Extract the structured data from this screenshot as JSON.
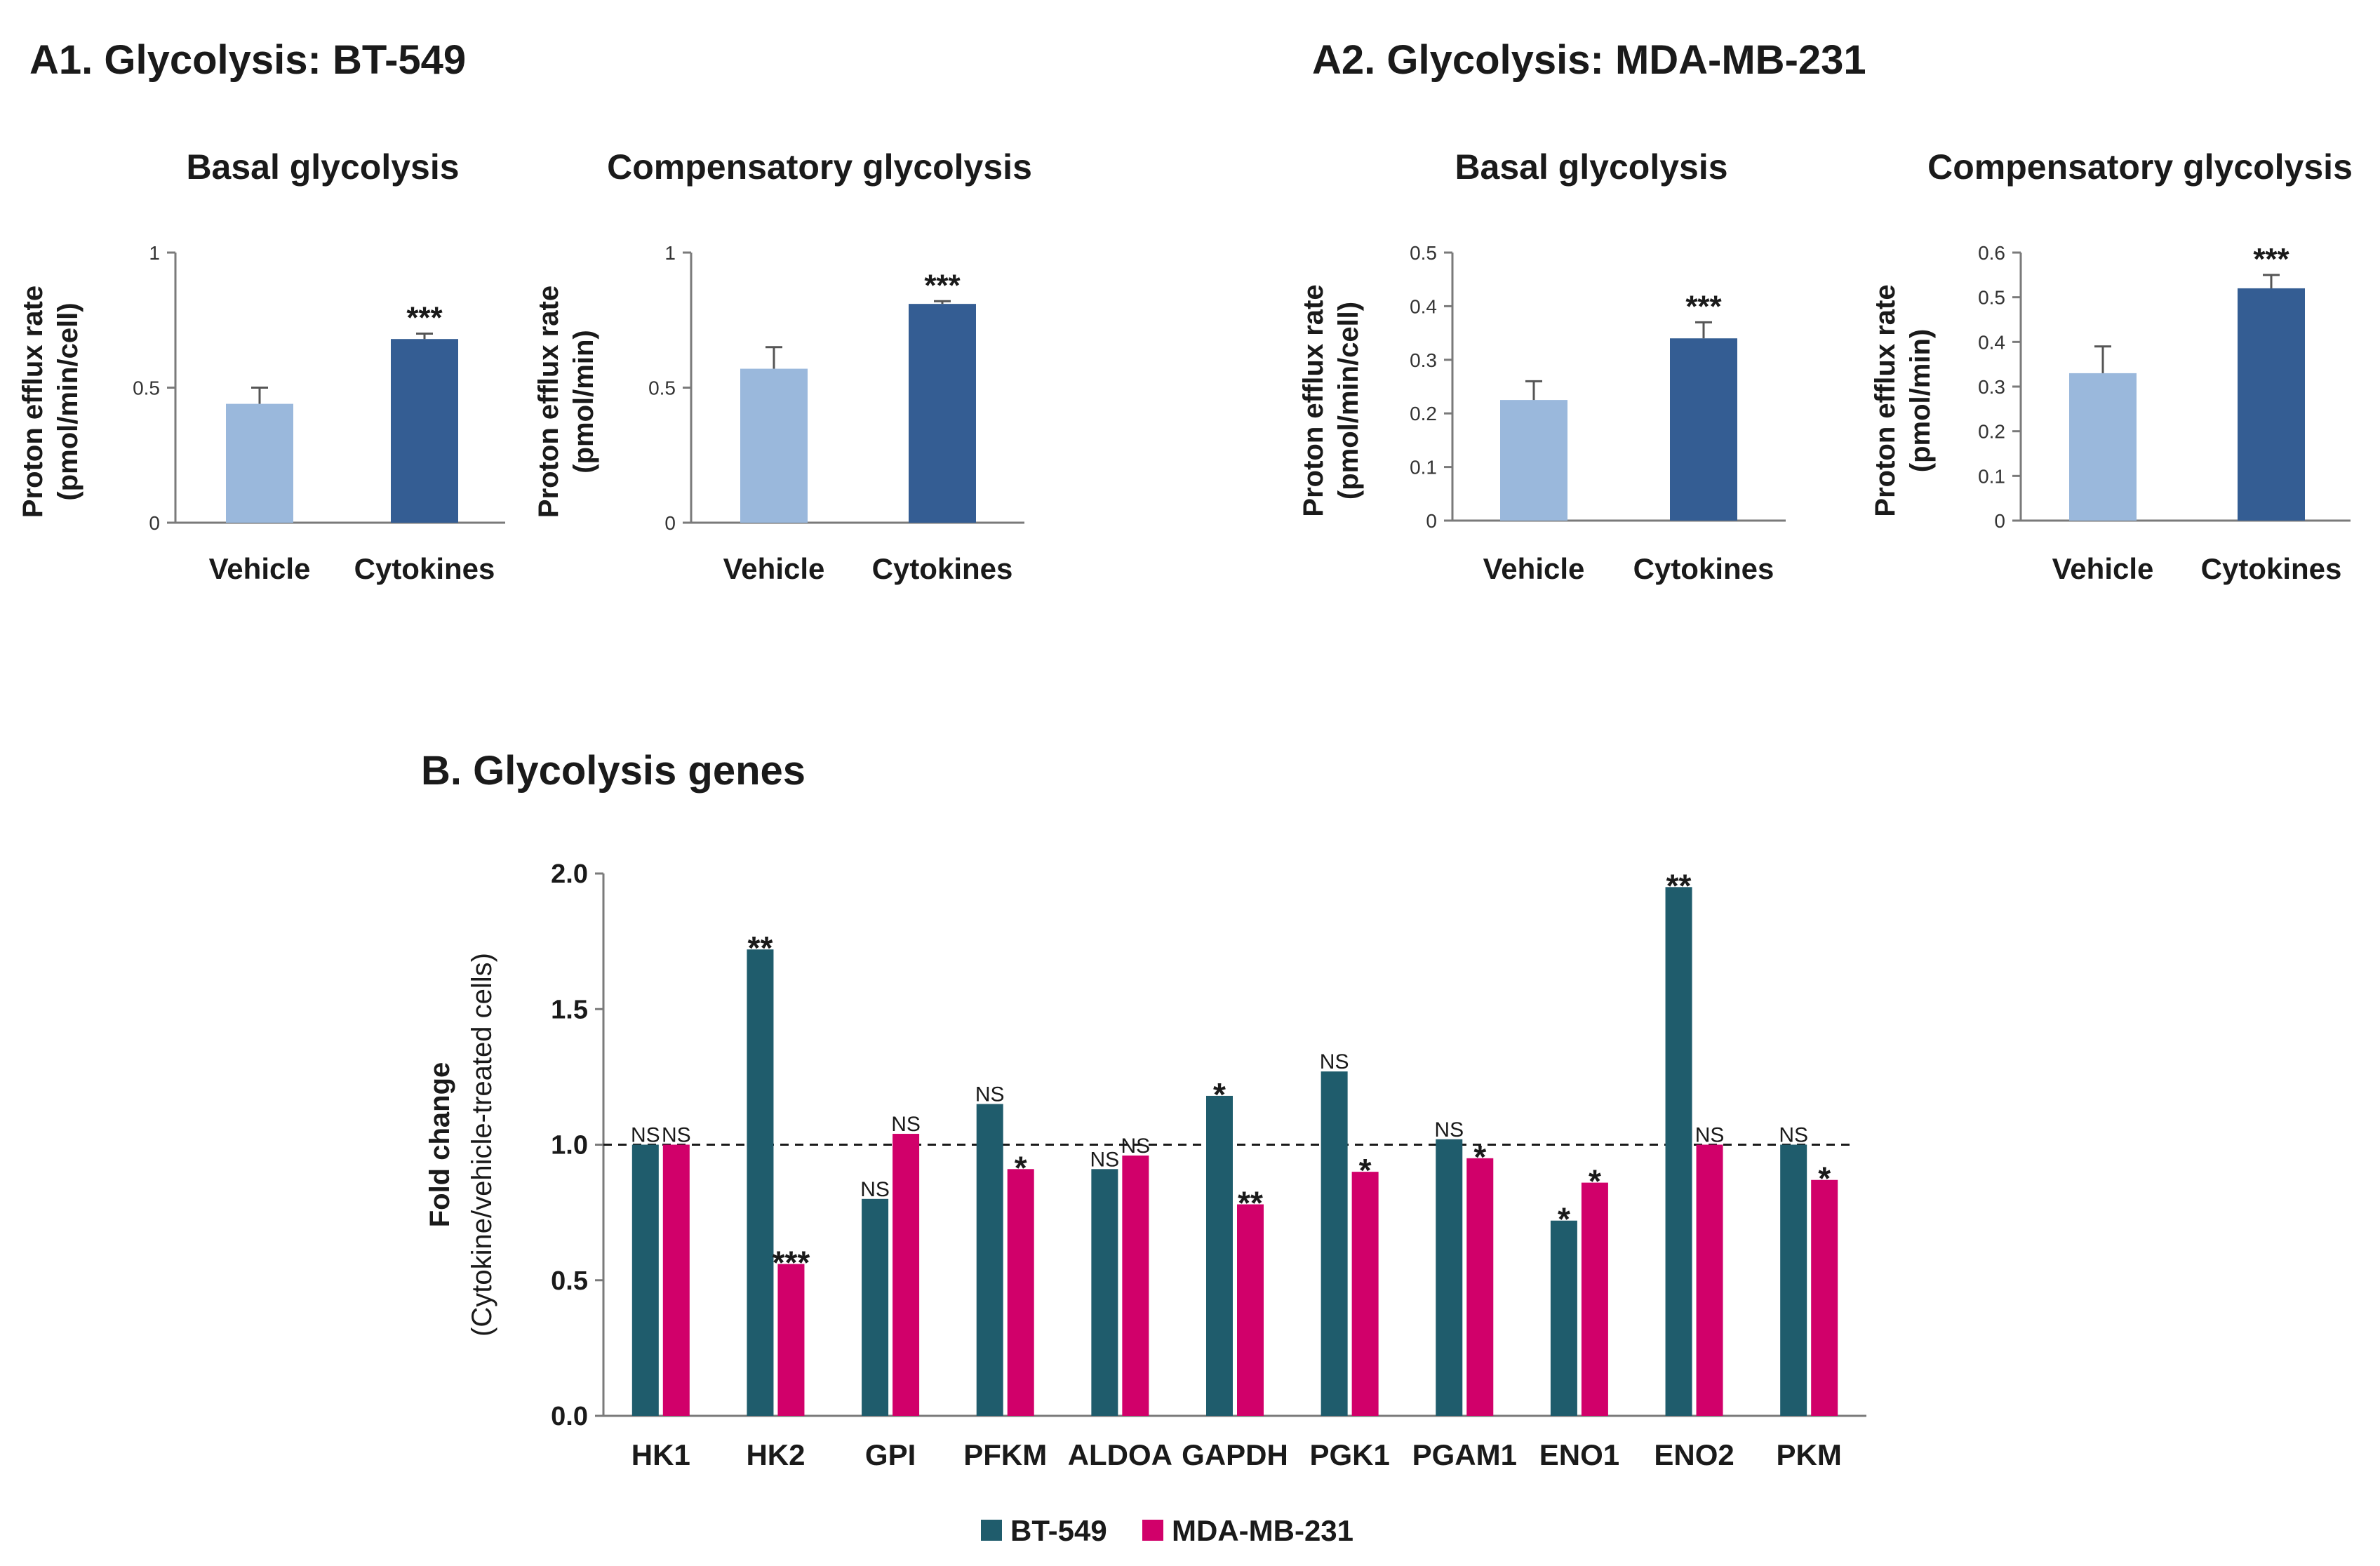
{
  "colors": {
    "vehicle": "#9ab8dc",
    "cytokines": "#345d93",
    "bt549": "#1f5c6c",
    "mda": "#d1006a"
  },
  "panels": {
    "a1": {
      "title": "A1. Glycolysis: BT-549"
    },
    "a2": {
      "title": "A2. Glycolysis: MDA-MB-231"
    },
    "b": {
      "title": "B. Glycolysis genes"
    }
  },
  "chart_data": [
    {
      "id": "a1-basal",
      "type": "bar",
      "panel": "A1",
      "title": "Basal glycolysis",
      "ylabel_line1": "Proton efflux rate",
      "ylabel_line2": "(pmol/min/cell)",
      "categories": [
        "Vehicle",
        "Cytokines"
      ],
      "values": [
        0.44,
        0.68
      ],
      "errors": [
        0.06,
        0.02
      ],
      "significance": [
        "",
        "***"
      ],
      "ylim": [
        0,
        1
      ],
      "yticks": [
        0,
        0.5,
        1
      ],
      "ytick_labels": [
        "0",
        "0.5",
        "1"
      ]
    },
    {
      "id": "a1-comp",
      "type": "bar",
      "panel": "A1",
      "title": "Compensatory glycolysis",
      "ylabel_line1": "Proton efflux rate",
      "ylabel_line2": "(pmol/min)",
      "categories": [
        "Vehicle",
        "Cytokines"
      ],
      "values": [
        0.57,
        0.81
      ],
      "errors": [
        0.08,
        0.01
      ],
      "significance": [
        "",
        "***"
      ],
      "ylim": [
        0,
        1
      ],
      "yticks": [
        0,
        0.5,
        1
      ],
      "ytick_labels": [
        "0",
        "0.5",
        "1"
      ]
    },
    {
      "id": "a2-basal",
      "type": "bar",
      "panel": "A2",
      "title": "Basal glycolysis",
      "ylabel_line1": "Proton efflux rate",
      "ylabel_line2": "(pmol/min/cell)",
      "categories": [
        "Vehicle",
        "Cytokines"
      ],
      "values": [
        0.225,
        0.34
      ],
      "errors": [
        0.035,
        0.03
      ],
      "significance": [
        "",
        "***"
      ],
      "ylim": [
        0,
        0.5
      ],
      "yticks": [
        0,
        0.1,
        0.2,
        0.3,
        0.4,
        0.5
      ],
      "ytick_labels": [
        "0",
        "0.1",
        "0.2",
        "0.3",
        "0.4",
        "0.5"
      ]
    },
    {
      "id": "a2-comp",
      "type": "bar",
      "panel": "A2",
      "title": "Compensatory glycolysis",
      "ylabel_line1": "Proton efflux rate",
      "ylabel_line2": "(pmol/min)",
      "categories": [
        "Vehicle",
        "Cytokines"
      ],
      "values": [
        0.33,
        0.52
      ],
      "errors": [
        0.06,
        0.03
      ],
      "significance": [
        "",
        "***"
      ],
      "ylim": [
        0,
        0.6
      ],
      "yticks": [
        0,
        0.1,
        0.2,
        0.3,
        0.4,
        0.5,
        0.6
      ],
      "ytick_labels": [
        "0",
        "0.1",
        "0.2",
        "0.3",
        "0.4",
        "0.5",
        "0.6"
      ]
    },
    {
      "id": "b-genes",
      "type": "bar",
      "panel": "B",
      "title": "",
      "ylabel_line1": "Fold change",
      "ylabel_line2": "(Cytokine/vehicle-treated cells)",
      "categories": [
        "HK1",
        "HK2",
        "GPI",
        "PFKM",
        "ALDOA",
        "GAPDH",
        "PGK1",
        "PGAM1",
        "ENO1",
        "ENO2",
        "PKM"
      ],
      "series": [
        {
          "name": "BT-549",
          "values": [
            1.0,
            1.72,
            0.8,
            1.15,
            0.91,
            1.18,
            1.27,
            1.02,
            0.72,
            1.95,
            1.0
          ],
          "significance": [
            "NS",
            "**",
            "NS",
            "NS",
            "NS",
            "*",
            "NS",
            "NS",
            "*",
            "**",
            "NS"
          ]
        },
        {
          "name": "MDA-MB-231",
          "values": [
            1.0,
            0.56,
            1.04,
            0.91,
            0.96,
            0.78,
            0.9,
            0.95,
            0.86,
            1.0,
            0.87
          ],
          "significance": [
            "NS",
            "***",
            "NS",
            "*",
            "NS",
            "**",
            "*",
            "*",
            "*",
            "NS",
            "*"
          ]
        }
      ],
      "reference_line": 1.0,
      "ylim": [
        0,
        2.0
      ],
      "yticks": [
        0,
        0.5,
        1.0,
        1.5,
        2.0
      ],
      "ytick_labels": [
        "0.0",
        "0.5",
        "1.0",
        "1.5",
        "2.0"
      ],
      "legend": [
        "BT-549",
        "MDA-MB-231"
      ],
      "legend_position": "bottom-center"
    }
  ]
}
